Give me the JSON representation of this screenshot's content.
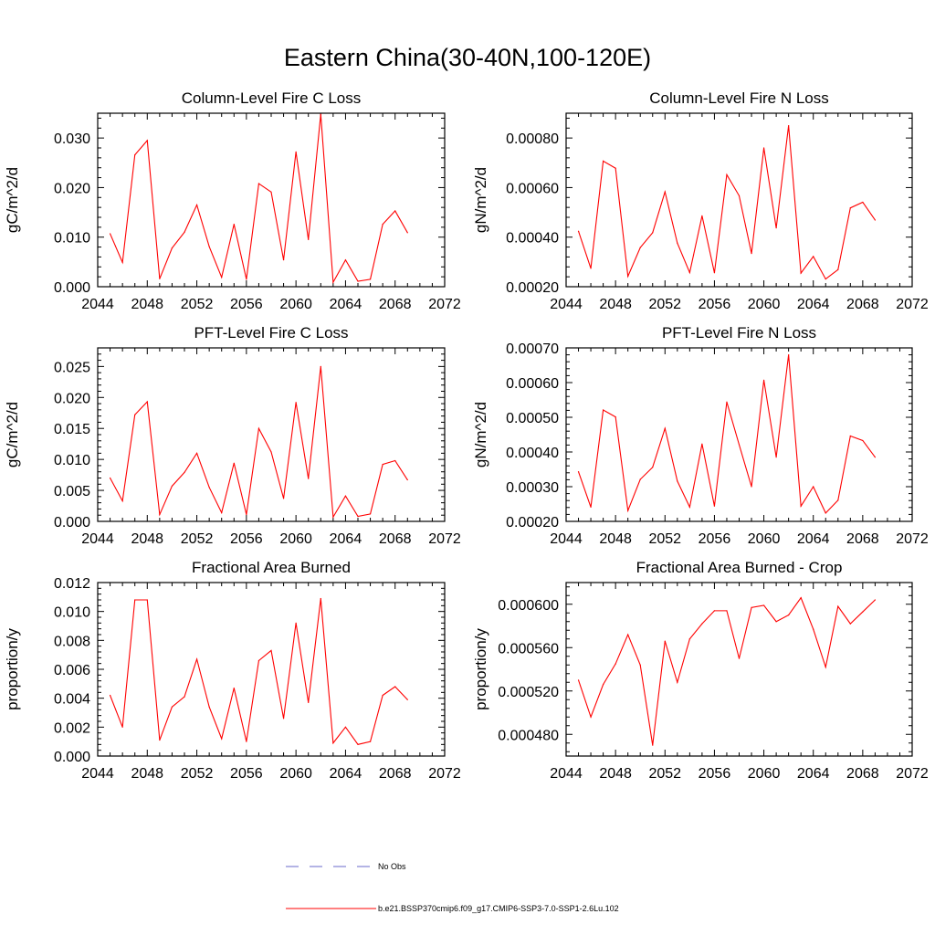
{
  "title": "Eastern China(30-40N,100-120E)",
  "line_color": "#ff0000",
  "chart_data": [
    {
      "type": "line",
      "title": "Column-Level Fire C Loss",
      "ylabel": "gC/m^2/d",
      "xlim": [
        2044,
        2072
      ],
      "ylim": [
        0,
        0.035
      ],
      "xticks": [
        2044,
        2048,
        2052,
        2056,
        2060,
        2064,
        2068,
        2072
      ],
      "xtick_labels": [
        "2044",
        "2048",
        "2052",
        "2056",
        "2060",
        "2064",
        "2068",
        "2072"
      ],
      "yticks": [
        0,
        0.01,
        0.02,
        0.03
      ],
      "ytick_labels": [
        "0.000",
        "0.010",
        "0.020",
        "0.030"
      ],
      "x": [
        2045,
        2046,
        2047,
        2048,
        2049,
        2050,
        2051,
        2052,
        2053,
        2054,
        2055,
        2056,
        2057,
        2058,
        2059,
        2060,
        2061,
        2062,
        2063,
        2064,
        2065,
        2066,
        2067,
        2068,
        2069
      ],
      "series": [
        {
          "values": [
            0.0107,
            0.0049,
            0.0266,
            0.0295,
            0.0016,
            0.0078,
            0.011,
            0.0165,
            0.0081,
            0.0019,
            0.0126,
            0.0015,
            0.0208,
            0.0191,
            0.0054,
            0.0272,
            0.0095,
            0.0348,
            0.0009,
            0.0054,
            0.0011,
            0.0015,
            0.0126,
            0.0153,
            0.0109
          ]
        }
      ]
    },
    {
      "type": "line",
      "title": "Column-Level Fire N Loss",
      "ylabel": "gN/m^2/d",
      "xlim": [
        2044,
        2072
      ],
      "ylim": [
        0.0002,
        0.0009
      ],
      "xticks": [
        2044,
        2048,
        2052,
        2056,
        2060,
        2064,
        2068,
        2072
      ],
      "xtick_labels": [
        "2044",
        "2048",
        "2052",
        "2056",
        "2060",
        "2064",
        "2068",
        "2072"
      ],
      "yticks": [
        0.0002,
        0.0004,
        0.0006,
        0.0008
      ],
      "ytick_labels": [
        "0.00020",
        "0.00040",
        "0.00060",
        "0.00080"
      ],
      "x": [
        2045,
        2046,
        2047,
        2048,
        2049,
        2050,
        2051,
        2052,
        2053,
        2054,
        2055,
        2056,
        2057,
        2058,
        2059,
        2060,
        2061,
        2062,
        2063,
        2064,
        2065,
        2066,
        2067,
        2068,
        2069
      ],
      "series": [
        {
          "values": [
            0.000424,
            0.000274,
            0.000707,
            0.000678,
            0.000242,
            0.000358,
            0.000418,
            0.000583,
            0.000376,
            0.000257,
            0.000486,
            0.000256,
            0.000652,
            0.000567,
            0.000334,
            0.00076,
            0.000437,
            0.00085,
            0.000255,
            0.000322,
            0.000231,
            0.000269,
            0.000518,
            0.000541,
            0.000469
          ]
        }
      ]
    },
    {
      "type": "line",
      "title": "PFT-Level Fire C Loss",
      "ylabel": "gC/m^2/d",
      "xlim": [
        2044,
        2072
      ],
      "ylim": [
        0,
        0.028
      ],
      "xticks": [
        2044,
        2048,
        2052,
        2056,
        2060,
        2064,
        2068,
        2072
      ],
      "xtick_labels": [
        "2044",
        "2048",
        "2052",
        "2056",
        "2060",
        "2064",
        "2068",
        "2072"
      ],
      "yticks": [
        0,
        0.005,
        0.01,
        0.015,
        0.02,
        0.025
      ],
      "ytick_labels": [
        "0.000",
        "0.005",
        "0.010",
        "0.015",
        "0.020",
        "0.025"
      ],
      "x": [
        2045,
        2046,
        2047,
        2048,
        2049,
        2050,
        2051,
        2052,
        2053,
        2054,
        2055,
        2056,
        2057,
        2058,
        2059,
        2060,
        2061,
        2062,
        2063,
        2064,
        2065,
        2066,
        2067,
        2068,
        2069
      ],
      "series": [
        {
          "values": [
            0.007,
            0.0033,
            0.0172,
            0.0193,
            0.0011,
            0.0057,
            0.0079,
            0.011,
            0.0055,
            0.0014,
            0.0094,
            0.0011,
            0.015,
            0.0112,
            0.0037,
            0.0192,
            0.0069,
            0.025,
            0.0007,
            0.0041,
            0.0008,
            0.0012,
            0.0092,
            0.0098,
            0.0067
          ]
        }
      ]
    },
    {
      "type": "line",
      "title": "PFT-Level Fire N Loss",
      "ylabel": "gN/m^2/d",
      "xlim": [
        2044,
        2072
      ],
      "ylim": [
        0.0002,
        0.0007
      ],
      "xticks": [
        2044,
        2048,
        2052,
        2056,
        2060,
        2064,
        2068,
        2072
      ],
      "xtick_labels": [
        "2044",
        "2048",
        "2052",
        "2056",
        "2060",
        "2064",
        "2068",
        "2072"
      ],
      "yticks": [
        0.0002,
        0.0003,
        0.0004,
        0.0005,
        0.0006,
        0.0007
      ],
      "ytick_labels": [
        "0.00020",
        "0.00030",
        "0.00040",
        "0.00050",
        "0.00060",
        "0.00070"
      ],
      "x": [
        2045,
        2046,
        2047,
        2048,
        2049,
        2050,
        2051,
        2052,
        2053,
        2054,
        2055,
        2056,
        2057,
        2058,
        2059,
        2060,
        2061,
        2062,
        2063,
        2064,
        2065,
        2066,
        2067,
        2068,
        2069
      ],
      "series": [
        {
          "values": [
            0.000343,
            0.000241,
            0.000521,
            0.000501,
            0.000231,
            0.000321,
            0.000356,
            0.000468,
            0.000316,
            0.000241,
            0.000423,
            0.000244,
            0.000544,
            0.000421,
            0.0003,
            0.000607,
            0.000385,
            0.00068,
            0.000244,
            0.0003,
            0.000224,
            0.000261,
            0.000446,
            0.000433,
            0.000385
          ]
        }
      ]
    },
    {
      "type": "line",
      "title": "Fractional Area Burned",
      "ylabel": "proportion/y",
      "xlim": [
        2044,
        2072
      ],
      "ylim": [
        0,
        0.012
      ],
      "xticks": [
        2044,
        2048,
        2052,
        2056,
        2060,
        2064,
        2068,
        2072
      ],
      "xtick_labels": [
        "2044",
        "2048",
        "2052",
        "2056",
        "2060",
        "2064",
        "2068",
        "2072"
      ],
      "yticks": [
        0,
        0.002,
        0.004,
        0.006,
        0.008,
        0.01,
        0.012
      ],
      "ytick_labels": [
        "0.000",
        "0.002",
        "0.004",
        "0.006",
        "0.008",
        "0.010",
        "0.012"
      ],
      "x": [
        2045,
        2046,
        2047,
        2048,
        2049,
        2050,
        2051,
        2052,
        2053,
        2054,
        2055,
        2056,
        2057,
        2058,
        2059,
        2060,
        2061,
        2062,
        2063,
        2064,
        2065,
        2066,
        2067,
        2068,
        2069
      ],
      "series": [
        {
          "values": [
            0.0042,
            0.002,
            0.0108,
            0.0108,
            0.0011,
            0.0034,
            0.0041,
            0.0067,
            0.0034,
            0.0012,
            0.0047,
            0.001,
            0.0066,
            0.0073,
            0.0026,
            0.0092,
            0.0037,
            0.0109,
            0.0009,
            0.002,
            0.0008,
            0.001,
            0.0042,
            0.0048,
            0.0039
          ]
        }
      ]
    },
    {
      "type": "line",
      "title": "Fractional Area Burned - Crop",
      "ylabel": "proportion/y",
      "xlim": [
        2044,
        2072
      ],
      "ylim": [
        0.00046,
        0.00062
      ],
      "xticks": [
        2044,
        2048,
        2052,
        2056,
        2060,
        2064,
        2068,
        2072
      ],
      "xtick_labels": [
        "2044",
        "2048",
        "2052",
        "2056",
        "2060",
        "2064",
        "2068",
        "2072"
      ],
      "yticks": [
        0.00048,
        0.00052,
        0.00056,
        0.0006
      ],
      "ytick_labels": [
        "0.000480",
        "0.000520",
        "0.000560",
        "0.000600"
      ],
      "x": [
        2045,
        2046,
        2047,
        2048,
        2049,
        2050,
        2051,
        2052,
        2053,
        2054,
        2055,
        2056,
        2057,
        2058,
        2059,
        2060,
        2061,
        2062,
        2063,
        2064,
        2065,
        2066,
        2067,
        2068,
        2069
      ],
      "series": [
        {
          "values": [
            0.00053,
            0.000496,
            0.000526,
            0.000545,
            0.000572,
            0.000544,
            0.00047,
            0.000566,
            0.000528,
            0.000568,
            0.000582,
            0.000594,
            0.000594,
            0.00055,
            0.000597,
            0.000599,
            0.000584,
            0.00059,
            0.000606,
            0.000577,
            0.000542,
            0.000598,
            0.000582,
            0.000593,
            0.000604
          ]
        }
      ]
    }
  ],
  "legend": {
    "no_obs": "No Obs",
    "model": "b.e21.BSSP370cmip6.f09_g17.CMIP6-SSP3-7.0-SSP1-2.6Lu.102",
    "no_obs_color": "#6a6acb",
    "model_color": "#ff0000"
  }
}
